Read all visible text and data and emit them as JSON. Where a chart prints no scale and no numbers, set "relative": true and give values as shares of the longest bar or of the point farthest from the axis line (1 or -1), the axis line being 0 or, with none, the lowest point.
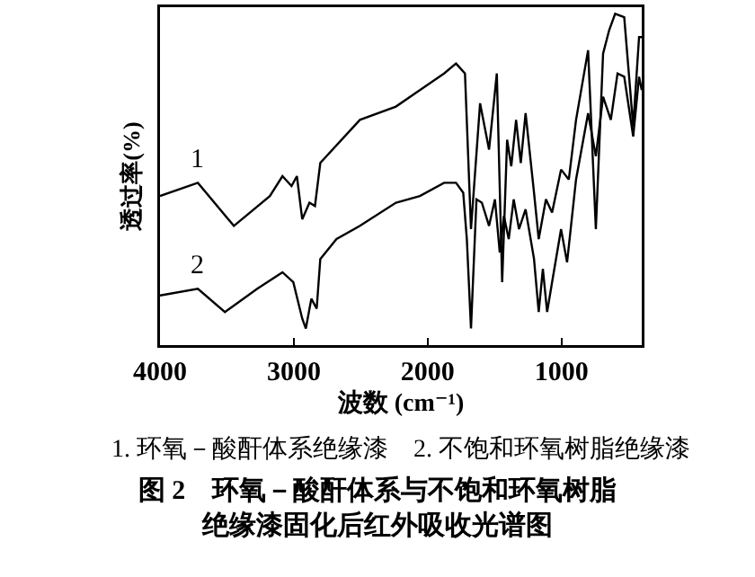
{
  "chart_data": {
    "type": "line",
    "relative": true,
    "title": "图 2　环氧－酸酐体系与不饱和环氧树脂绝缘漆固化后红外吸收光谱图",
    "xlabel": "波数 (cm⁻¹)",
    "ylabel": "透过率(%)",
    "xlim": [
      4000,
      400
    ],
    "xticks": [
      4000,
      3000,
      2000,
      1000
    ],
    "grid": false,
    "legend": false,
    "marker": "none",
    "line_style": "solid",
    "annotations": [
      "1. 环氧－酸酐体系绝缘漆　2. 不饱和环氧树脂绝缘漆"
    ],
    "series": [
      {
        "name": "1",
        "color": "#000000",
        "x": [
          4000,
          3717,
          3448,
          3179,
          3085,
          3017,
          2977,
          2937,
          2883,
          2842,
          2802,
          2506,
          2237,
          2058,
          1877,
          1788,
          1721,
          1676,
          1608,
          1541,
          1483,
          1443,
          1406,
          1375,
          1339,
          1304,
          1268,
          1205,
          1170,
          1116,
          1070,
          1003,
          945,
          891,
          801,
          743,
          689,
          644,
          599,
          531,
          464,
          420,
          400
        ],
        "values": [
          0.45,
          0.49,
          0.36,
          0.45,
          0.51,
          0.48,
          0.51,
          0.38,
          0.43,
          0.42,
          0.55,
          0.68,
          0.72,
          0.77,
          0.82,
          0.85,
          0.82,
          0.35,
          0.73,
          0.59,
          0.82,
          0.19,
          0.62,
          0.54,
          0.68,
          0.55,
          0.7,
          0.46,
          0.32,
          0.44,
          0.4,
          0.53,
          0.5,
          0.68,
          0.89,
          0.35,
          0.88,
          0.95,
          1.0,
          0.99,
          0.66,
          0.93,
          0.93
        ]
      },
      {
        "name": "2",
        "color": "#000000",
        "x": [
          4000,
          3717,
          3515,
          3273,
          3085,
          3004,
          2937,
          2910,
          2869,
          2829,
          2802,
          2681,
          2506,
          2237,
          2058,
          1877,
          1788,
          1734,
          1707,
          1676,
          1635,
          1595,
          1541,
          1497,
          1461,
          1430,
          1394,
          1357,
          1317,
          1268,
          1205,
          1170,
          1139,
          1107,
          1070,
          1003,
          958,
          891,
          801,
          743,
          689,
          631,
          581,
          531,
          464,
          420,
          400
        ],
        "values": [
          0.15,
          0.17,
          0.1,
          0.17,
          0.22,
          0.19,
          0.08,
          0.05,
          0.14,
          0.11,
          0.26,
          0.32,
          0.36,
          0.43,
          0.45,
          0.49,
          0.49,
          0.46,
          0.32,
          0.05,
          0.44,
          0.43,
          0.36,
          0.44,
          0.28,
          0.39,
          0.32,
          0.44,
          0.35,
          0.41,
          0.26,
          0.1,
          0.23,
          0.1,
          0.19,
          0.35,
          0.25,
          0.5,
          0.7,
          0.57,
          0.75,
          0.68,
          0.82,
          0.81,
          0.63,
          0.81,
          0.77
        ]
      }
    ]
  }
}
